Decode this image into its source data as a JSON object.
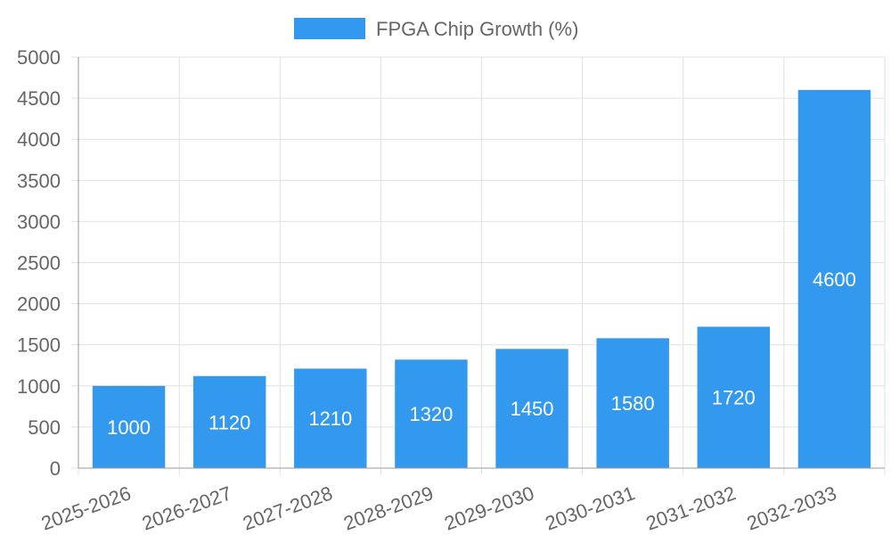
{
  "chart_data": {
    "type": "bar",
    "title": "",
    "xlabel": "",
    "ylabel": "",
    "categories": [
      "2025-2026",
      "2026-2027",
      "2027-2028",
      "2028-2029",
      "2029-2030",
      "2030-2031",
      "2031-2032",
      "2032-2033"
    ],
    "series": [
      {
        "name": "FPGA Chip Growth (%)",
        "values": [
          1000,
          1120,
          1210,
          1320,
          1450,
          1580,
          1720,
          4600
        ],
        "color": "#3399ee"
      }
    ],
    "ylim": [
      0,
      5000
    ],
    "yticks": [
      0,
      500,
      1000,
      1500,
      2000,
      2500,
      3000,
      3500,
      4000,
      4500,
      5000
    ],
    "grid": true,
    "legend_position": "top-center",
    "data_labels": true
  }
}
